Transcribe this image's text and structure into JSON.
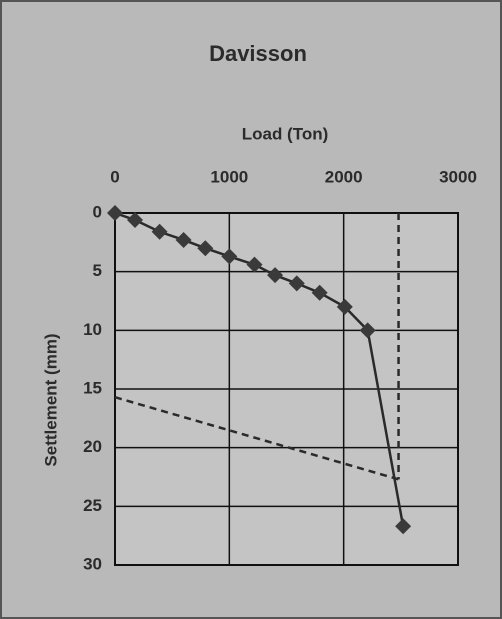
{
  "chart_data": {
    "type": "line",
    "title": "Davisson",
    "x_label": "Load (Ton)",
    "y_label": "Settlement (mm)",
    "xlim": [
      0,
      3000
    ],
    "xticks": [
      0,
      1000,
      2000,
      3000
    ],
    "ylim": [
      0,
      30
    ],
    "yticks": [
      0,
      5,
      10,
      15,
      20,
      25,
      30
    ],
    "y_inverted": true,
    "x_axis_position": "top",
    "grid": true,
    "series": [
      {
        "color": "#2a2a2a",
        "marker": "diamond",
        "dashed": false,
        "x": [
          0,
          175,
          390,
          600,
          790,
          1000,
          1220,
          1400,
          1590,
          1790,
          2010,
          2210,
          2520
        ],
        "values": [
          0,
          0.6,
          1.6,
          2.3,
          3.0,
          3.7,
          4.4,
          5.3,
          6.0,
          6.8,
          8.0,
          10.0,
          26.7
        ]
      },
      {
        "color": "#2a2a2a",
        "marker": "none",
        "dashed": true,
        "x": [
          2480,
          2480
        ],
        "values": [
          0,
          22.7
        ]
      },
      {
        "color": "#2a2a2a",
        "marker": "none",
        "dashed": true,
        "x": [
          0,
          2480
        ],
        "values": [
          15.7,
          22.7
        ]
      }
    ]
  }
}
